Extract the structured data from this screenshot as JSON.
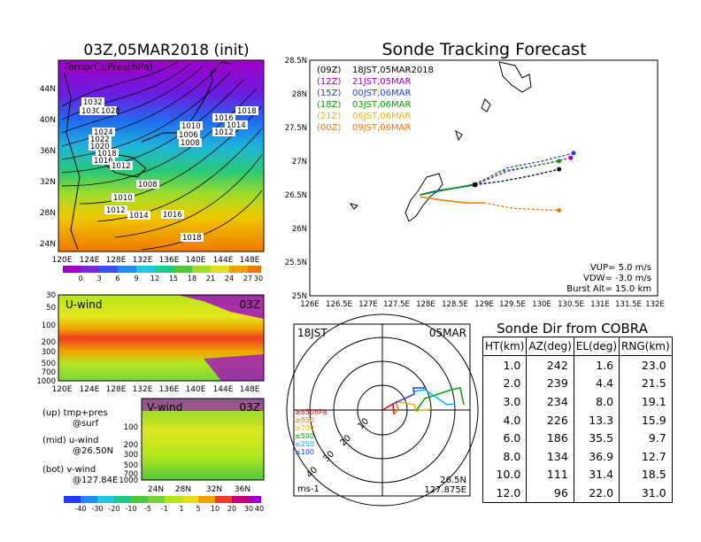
{
  "map_panel": {
    "title": "03Z,05MAR2018 (init)",
    "label": "Temp(C),Pres(hPa)",
    "lat_ticks": [
      "44N",
      "40N",
      "36N",
      "32N",
      "28N",
      "24N"
    ],
    "lon_ticks": [
      "120E",
      "124E",
      "128E",
      "132E",
      "136E",
      "140E",
      "144E",
      "148E"
    ],
    "isobar_labels": [
      "1032",
      "1030",
      "1028",
      "1024",
      "1022",
      "1020",
      "1018",
      "1016",
      "1014",
      "1012",
      "1010",
      "1008",
      "1006",
      "1016",
      "1014",
      "1012",
      "1010",
      "1008",
      "1006",
      "1010",
      "1012",
      "1014",
      "1016",
      "1018",
      "1018"
    ],
    "colorbar_ticks": [
      "0",
      "3",
      "6",
      "9",
      "12",
      "15",
      "18",
      "21",
      "24",
      "27",
      "30"
    ]
  },
  "uwind_panel": {
    "label": "U-wind",
    "time": "03Z",
    "y_ticks": [
      "30",
      "50",
      "100",
      "200",
      "300",
      "500",
      "700",
      "1000"
    ],
    "x_ticks": [
      "120E",
      "124E",
      "128E",
      "132E",
      "136E",
      "140E",
      "144E",
      "148E"
    ]
  },
  "vwind_panel": {
    "label": "V-wind",
    "time": "03Z",
    "y_ticks": [
      "100",
      "200",
      "300",
      "500",
      "700",
      "1000"
    ],
    "x_ticks": [
      "24N",
      "28N",
      "32N",
      "36N"
    ]
  },
  "legend_notes": {
    "up": "(up) tmp+pres",
    "up2": "@surf",
    "mid": "(mid) u-wind",
    "mid2": "@26.50N",
    "bot": "(bot) v-wind",
    "bot2": "@127.84E"
  },
  "wind_colorbar_ticks": [
    "-40",
    "-30",
    "-20",
    "-10",
    "-5",
    "-1",
    "1",
    "5",
    "10",
    "20",
    "30",
    "40"
  ],
  "tracking": {
    "title": "Sonde Tracking Forecast",
    "lat_ticks": [
      "28.5N",
      "28N",
      "27.5N",
      "27N",
      "26.5N",
      "26N",
      "25.5N",
      "25N"
    ],
    "lon_ticks": [
      "126E",
      "126.5E",
      "127E",
      "127.5E",
      "128E",
      "128.5E",
      "129E",
      "129.5E",
      "130E",
      "130.5E",
      "131E",
      "131.5E",
      "132E"
    ],
    "legend": [
      {
        "code": "(09Z)",
        "text": "18JST,05MAR2018",
        "color": "#000000"
      },
      {
        "code": "(12Z)",
        "text": "21JST,05MAR",
        "color": "#a000c0"
      },
      {
        "code": "(15Z)",
        "text": "00JST,06MAR",
        "color": "#1e3cff"
      },
      {
        "code": "(18Z)",
        "text": "03JST,06MAR",
        "color": "#00a000"
      },
      {
        "code": "(21Z)",
        "text": "06JST,06MAR",
        "color": "#f0b400"
      },
      {
        "code": "(00Z)",
        "text": "09JST,06MAR",
        "color": "#f07800"
      }
    ],
    "vup": "VUP= 5.0 m/s",
    "vdw": "VDW= -3.0 m/s",
    "burst": "Burst Alt= 15.0 km"
  },
  "polar": {
    "time": "18JST",
    "date": "05MAR",
    "ring_labels": [
      "10",
      "20",
      "30",
      "40"
    ],
    "unit": "ms-1",
    "lat": "26.5N",
    "lon": "127.875E",
    "legend": [
      {
        "text": "≥850hPa",
        "color": "#e00000"
      },
      {
        "text": "≥850",
        "color": "#f07800"
      },
      {
        "text": "≥700",
        "color": "#f0b400"
      },
      {
        "text": "≤500",
        "color": "#00a000"
      },
      {
        "text": "≤250",
        "color": "#00b4f0"
      },
      {
        "text": "≤100",
        "color": "#1e3cff"
      }
    ]
  },
  "sonde_dir": {
    "title": "Sonde Dir from COBRA",
    "headers": [
      "HT(km)",
      "AZ(deg)",
      "EL(deg)",
      "RNG(km)"
    ],
    "rows": [
      [
        "1.0",
        "242",
        "1.6",
        "23.0"
      ],
      [
        "2.0",
        "239",
        "4.4",
        "21.5"
      ],
      [
        "3.0",
        "234",
        "8.0",
        "19.1"
      ],
      [
        "4.0",
        "226",
        "13.3",
        "15.9"
      ],
      [
        "6.0",
        "186",
        "35.5",
        "9.7"
      ],
      [
        "8.0",
        "134",
        "36.9",
        "12.7"
      ],
      [
        "10.0",
        "111",
        "31.4",
        "18.5"
      ],
      [
        "12.0",
        "96",
        "22.0",
        "31.0"
      ]
    ]
  },
  "chart_data": [
    {
      "type": "line",
      "title": "Sonde Tracking Forecast",
      "xlabel": "",
      "ylabel": "",
      "xlim": [
        126,
        132
      ],
      "ylim": [
        25,
        28.5
      ],
      "series": [
        {
          "name": "(09Z) 18JST,05MAR2018",
          "x": [
            127.9,
            128.2,
            128.5,
            128.85,
            129.3,
            129.8,
            130.3
          ],
          "y": [
            26.5,
            26.56,
            26.6,
            26.65,
            26.7,
            26.78,
            26.88
          ]
        },
        {
          "name": "(12Z) 21JST,05MAR",
          "x": [
            127.9,
            128.2,
            128.5,
            128.85,
            129.4,
            130.0,
            130.5
          ],
          "y": [
            26.5,
            26.56,
            26.6,
            26.65,
            26.85,
            26.95,
            27.05
          ]
        },
        {
          "name": "(15Z) 00JST,06MAR",
          "x": [
            127.9,
            128.2,
            128.5,
            128.85,
            129.4,
            130.0,
            130.55
          ],
          "y": [
            26.5,
            26.56,
            26.6,
            26.65,
            26.9,
            27.0,
            27.12
          ]
        },
        {
          "name": "(18Z) 03JST,06MAR",
          "x": [
            127.9,
            128.2,
            128.5,
            128.85,
            129.3,
            129.8,
            130.3
          ],
          "y": [
            26.5,
            26.55,
            26.6,
            26.66,
            26.85,
            26.92,
            27.0
          ]
        },
        {
          "name": "(00Z) 09JST,06MAR",
          "x": [
            127.9,
            128.3,
            128.7,
            129.0,
            129.5,
            130.0,
            130.3
          ],
          "y": [
            26.47,
            26.42,
            26.38,
            26.38,
            26.3,
            26.28,
            26.27
          ]
        }
      ]
    },
    {
      "type": "table",
      "title": "Sonde Dir from COBRA",
      "columns": [
        "HT(km)",
        "AZ(deg)",
        "EL(deg)",
        "RNG(km)"
      ],
      "rows": [
        [
          1.0,
          242,
          1.6,
          23.0
        ],
        [
          2.0,
          239,
          4.4,
          21.5
        ],
        [
          3.0,
          234,
          8.0,
          19.1
        ],
        [
          4.0,
          226,
          13.3,
          15.9
        ],
        [
          6.0,
          186,
          35.5,
          9.7
        ],
        [
          8.0,
          134,
          36.9,
          12.7
        ],
        [
          10.0,
          111,
          31.4,
          18.5
        ],
        [
          12.0,
          96,
          22.0,
          31.0
        ]
      ]
    }
  ]
}
